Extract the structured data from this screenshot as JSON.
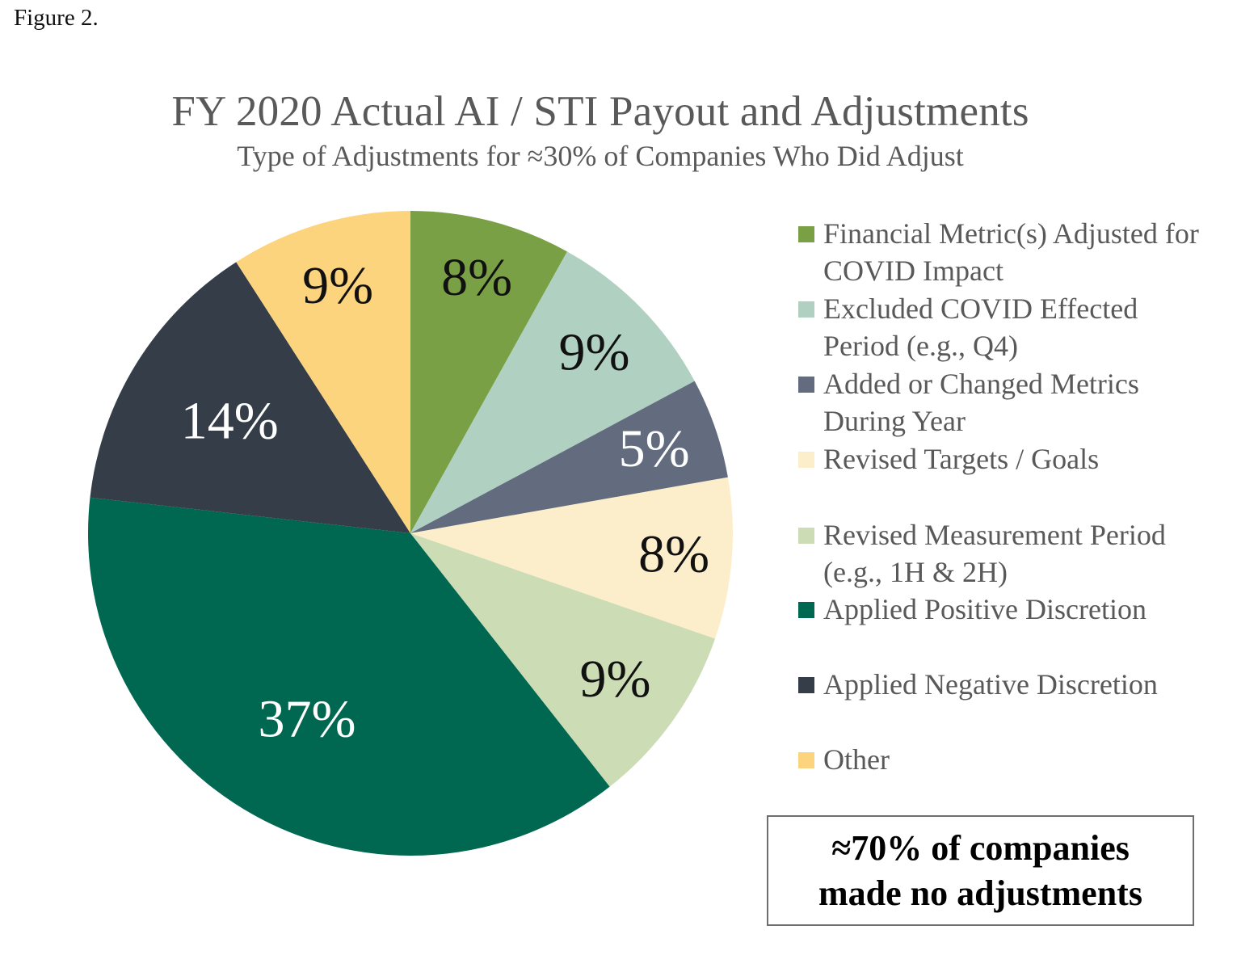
{
  "figure_label": "Figure 2.",
  "chart_data": {
    "type": "pie",
    "title": "FY 2020 Actual AI / STI Payout and Adjustments",
    "subtitle": "Type of Adjustments for ≈30% of Companies Who Did Adjust",
    "start_angle_deg": 0,
    "direction": "clockwise",
    "legend_position": "right",
    "slices": [
      {
        "label": "Financial Metric(s) Adjusted for COVID Impact",
        "value": 8,
        "display": "8%",
        "color": "#7aa046",
        "label_color": "#111111"
      },
      {
        "label": "Excluded COVID Effected Period (e.g., Q4)",
        "value": 9,
        "display": "9%",
        "color": "#b0d0c2",
        "label_color": "#111111"
      },
      {
        "label": "Added or Changed Metrics During Year",
        "value": 5,
        "display": "5%",
        "color": "#626c7e",
        "label_color": "#ffffff"
      },
      {
        "label": "Revised Targets / Goals",
        "value": 8,
        "display": "8%",
        "color": "#fdeecb",
        "label_color": "#111111"
      },
      {
        "label": "Revised Measurement Period (e.g., 1H & 2H)",
        "value": 9,
        "display": "9%",
        "color": "#ccdcb5",
        "label_color": "#111111"
      },
      {
        "label": "Applied Positive Discretion",
        "value": 37,
        "display": "37%",
        "color": "#006750",
        "label_color": "#ffffff"
      },
      {
        "label": "Applied Negative Discretion",
        "value": 14,
        "display": "14%",
        "color": "#353e48",
        "label_color": "#ffffff"
      },
      {
        "label": "Other",
        "value": 9,
        "display": "9%",
        "color": "#fdd47e",
        "label_color": "#111111"
      }
    ]
  },
  "legend": {
    "items": [
      {
        "text": "Financial Metric(s) Adjusted for COVID Impact",
        "color": "#7aa046"
      },
      {
        "text": "Excluded COVID Effected Period (e.g., Q4)",
        "color": "#b0d0c2"
      },
      {
        "text": "Added or Changed Metrics During Year",
        "color": "#626c7e"
      },
      {
        "text": "Revised Targets / Goals",
        "color": "#fdeecb"
      },
      {
        "text": "Revised Measurement Period (e.g., 1H & 2H)",
        "color": "#ccdcb5"
      },
      {
        "text": "Applied Positive Discretion",
        "color": "#006750"
      },
      {
        "text": "Applied Negative Discretion",
        "color": "#353e48"
      },
      {
        "text": "Other",
        "color": "#fdd47e"
      }
    ]
  },
  "callout": {
    "line1": "≈70% of companies",
    "line2": "made no adjustments"
  }
}
